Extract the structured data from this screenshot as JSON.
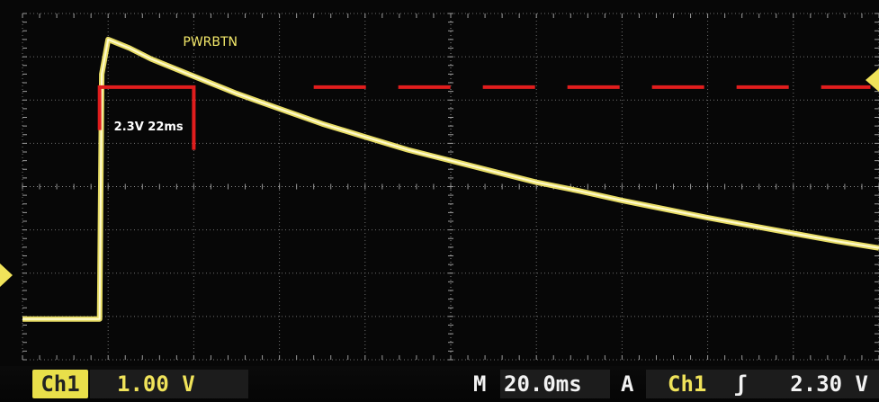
{
  "chart_data": {
    "type": "line",
    "title": "",
    "xlabel": "",
    "ylabel": "",
    "xlim": [
      0,
      200
    ],
    "ylim": [
      -4,
      4
    ],
    "grid": true,
    "series": [
      {
        "name": "PWRBTN",
        "x": [
          0,
          18,
          18.5,
          20,
          25,
          30,
          40,
          50,
          60,
          70,
          80,
          90,
          100,
          110,
          120,
          130,
          140,
          150,
          160,
          170,
          180,
          190,
          200
        ],
        "y": [
          -3.06,
          -3.06,
          2.6,
          3.4,
          3.2,
          2.95,
          2.55,
          2.15,
          1.8,
          1.45,
          1.15,
          0.85,
          0.6,
          0.35,
          0.1,
          -0.1,
          -0.32,
          -0.52,
          -0.72,
          -0.9,
          -1.08,
          -1.26,
          -1.42
        ]
      }
    ],
    "annotations": [
      {
        "text": "PWRBTN",
        "color": "#f3e86a"
      },
      {
        "text": "2.3V 22ms",
        "color": "#ffffff"
      }
    ],
    "marker": {
      "x_start": 18,
      "x_end": 40,
      "y_top": 2.3,
      "y_bottom": 0.85
    },
    "trigger_level": 2.3,
    "ground_level": -3.06
  },
  "status": {
    "channel": "Ch1",
    "volts_per_div": "1.00 V",
    "timebase_prefix": "M",
    "timebase": "20.0ms",
    "trigger_mode": "A",
    "trigger_source": "Ch1",
    "trigger_slope": "ʃ",
    "trigger_level": "2.30 V"
  },
  "colors": {
    "trace": "#f3e86a",
    "annotation": "#e11d1d",
    "grid": "#6f6f6f",
    "badge": "#e9df4a"
  }
}
